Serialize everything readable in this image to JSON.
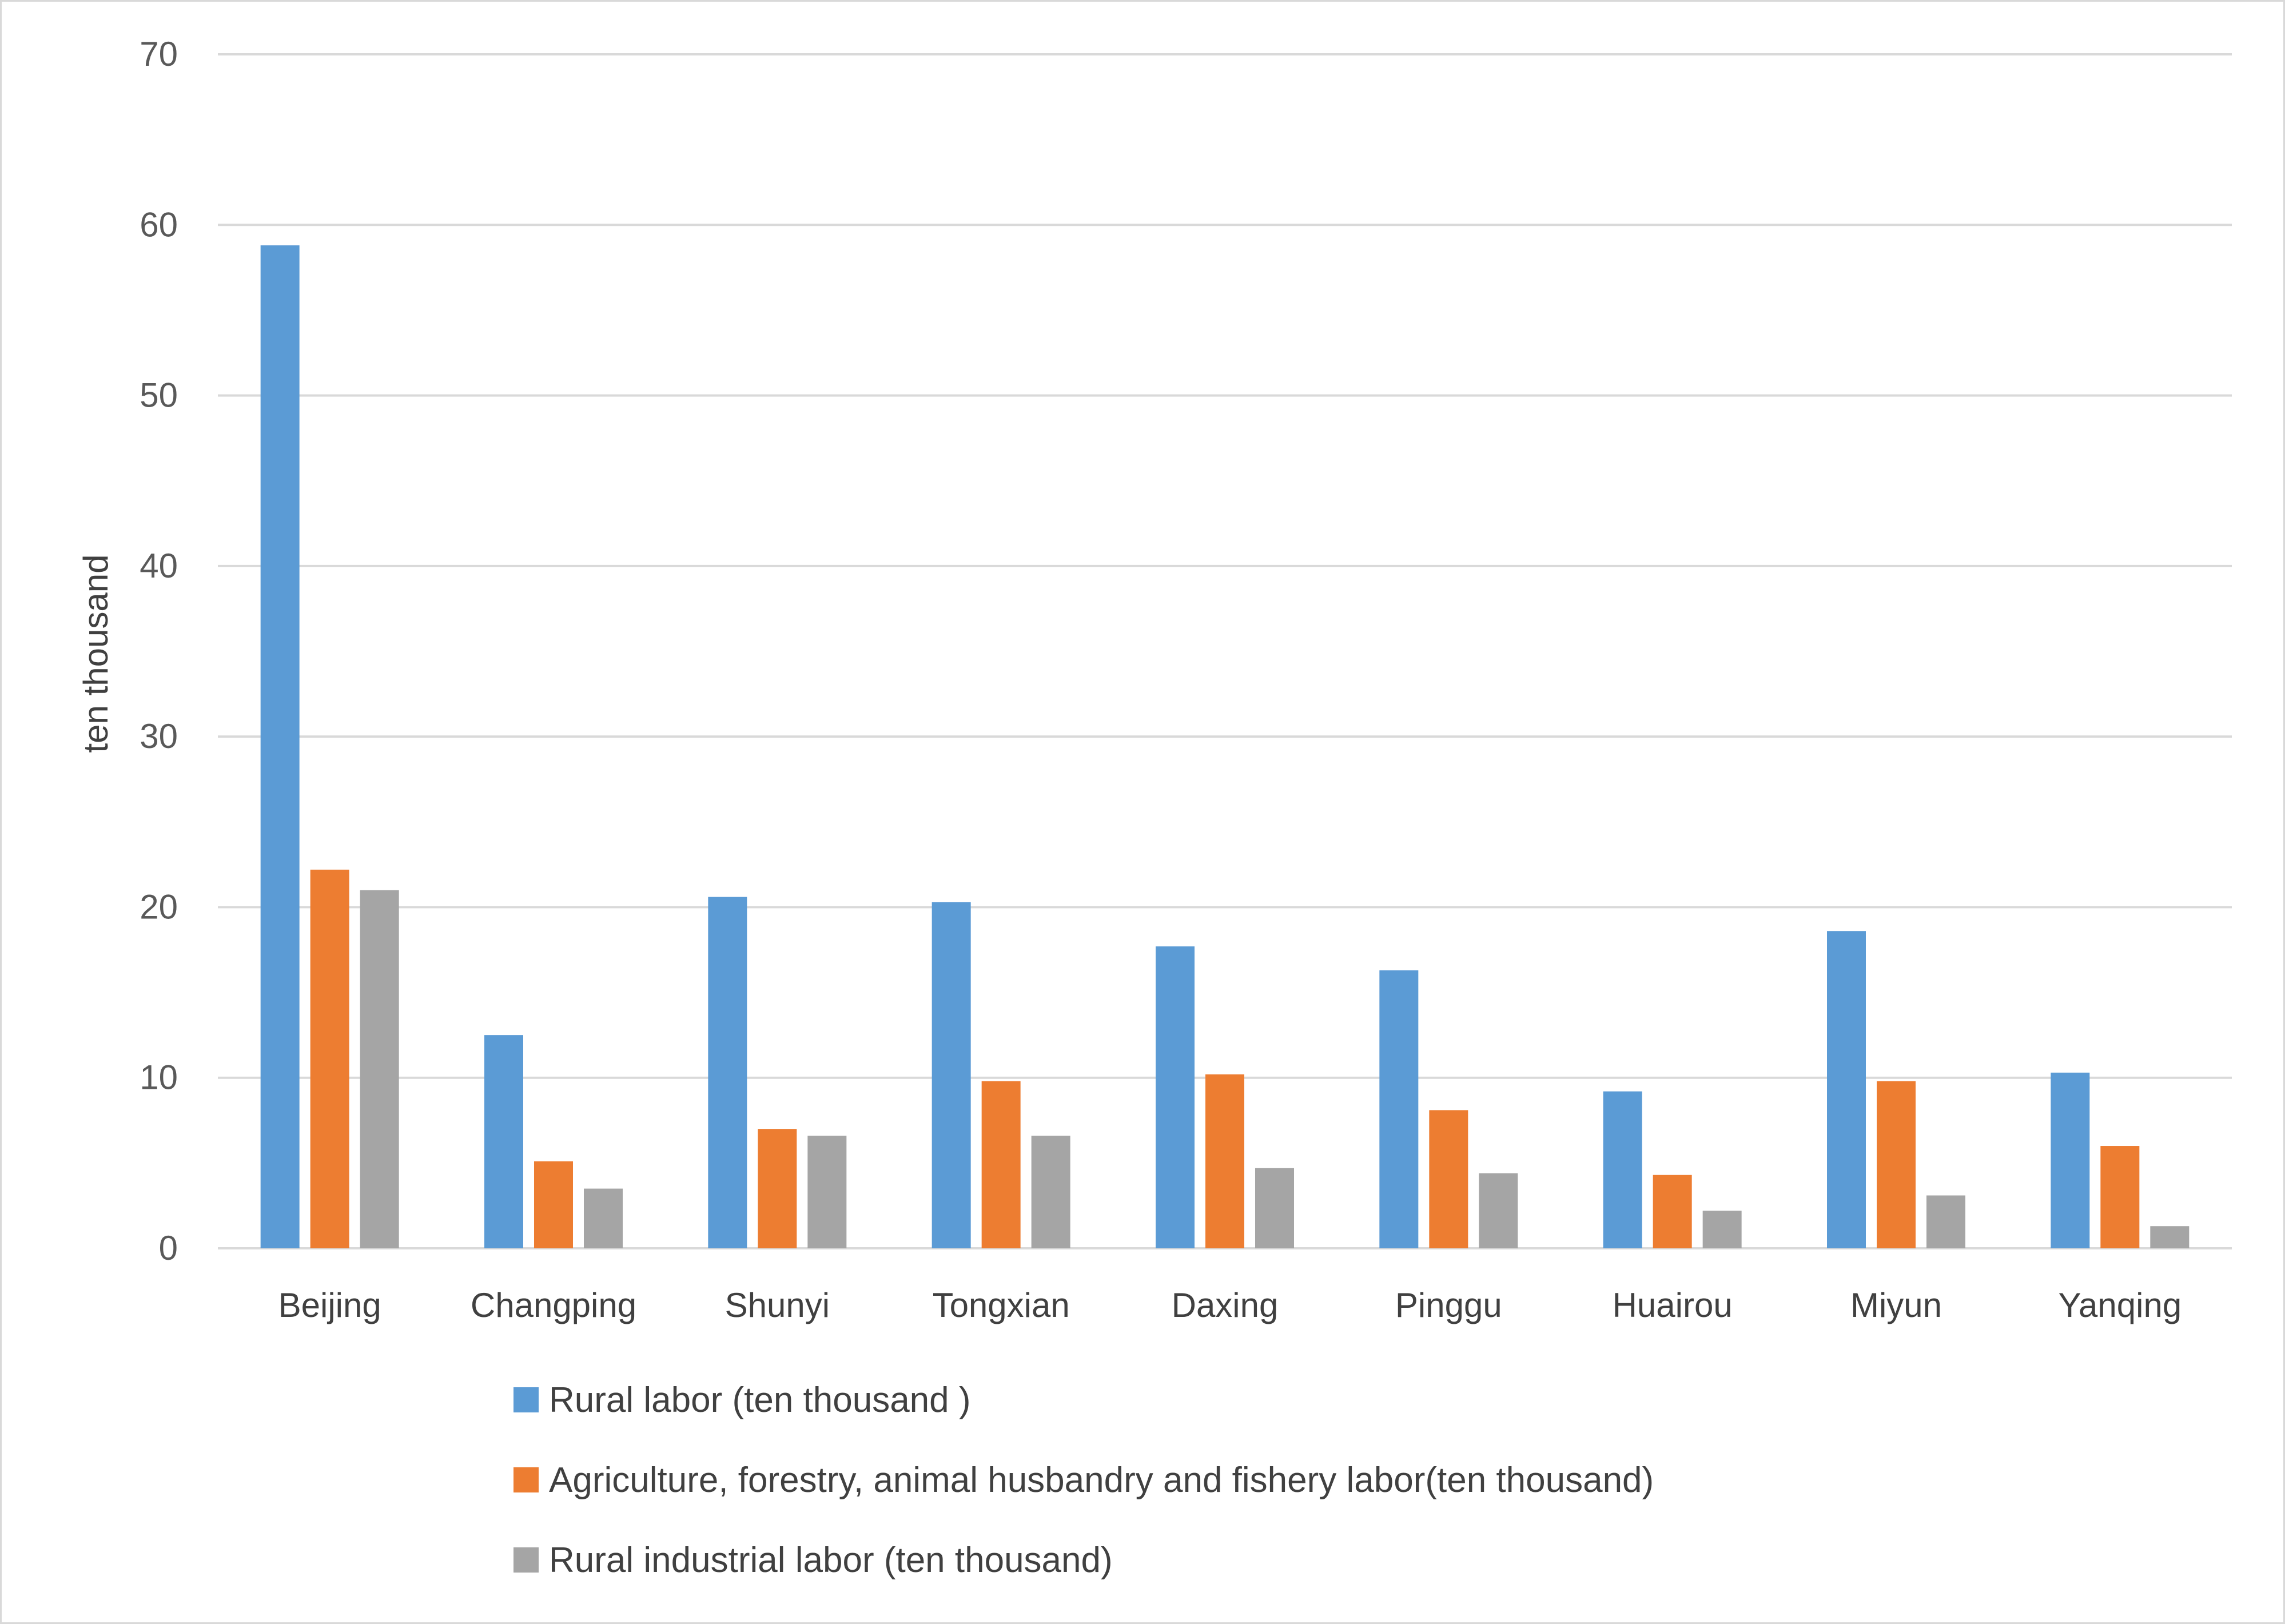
{
  "chart_data": {
    "type": "bar",
    "title": "",
    "xlabel": "",
    "ylabel": "ten thousand",
    "ylim": [
      0,
      70
    ],
    "yticks": [
      0,
      10,
      20,
      30,
      40,
      50,
      60,
      70
    ],
    "grid": true,
    "legend_position": "bottom",
    "categories": [
      "Beijing",
      "Changping",
      "Shunyi",
      "Tongxian",
      "Daxing",
      "Pinggu",
      "Huairou",
      "Miyun",
      "Yanqing"
    ],
    "series": [
      {
        "name": "Rural labor (ten thousand )",
        "color": "#5b9bd5",
        "values": [
          58.8,
          12.5,
          20.6,
          20.3,
          17.7,
          16.3,
          9.2,
          18.6,
          10.3
        ]
      },
      {
        "name": "Agriculture, forestry, animal husbandry and fishery labor(ten thousand)",
        "color": "#ed7d31",
        "values": [
          22.2,
          5.1,
          7.0,
          9.8,
          10.2,
          8.1,
          4.3,
          9.8,
          6.0
        ]
      },
      {
        "name": "Rural industrial labor (ten thousand)",
        "color": "#a5a5a5",
        "values": [
          21.0,
          3.5,
          6.6,
          6.6,
          4.7,
          4.4,
          2.2,
          3.1,
          1.3
        ]
      }
    ],
    "gridline_color": "#d9d9d9"
  }
}
